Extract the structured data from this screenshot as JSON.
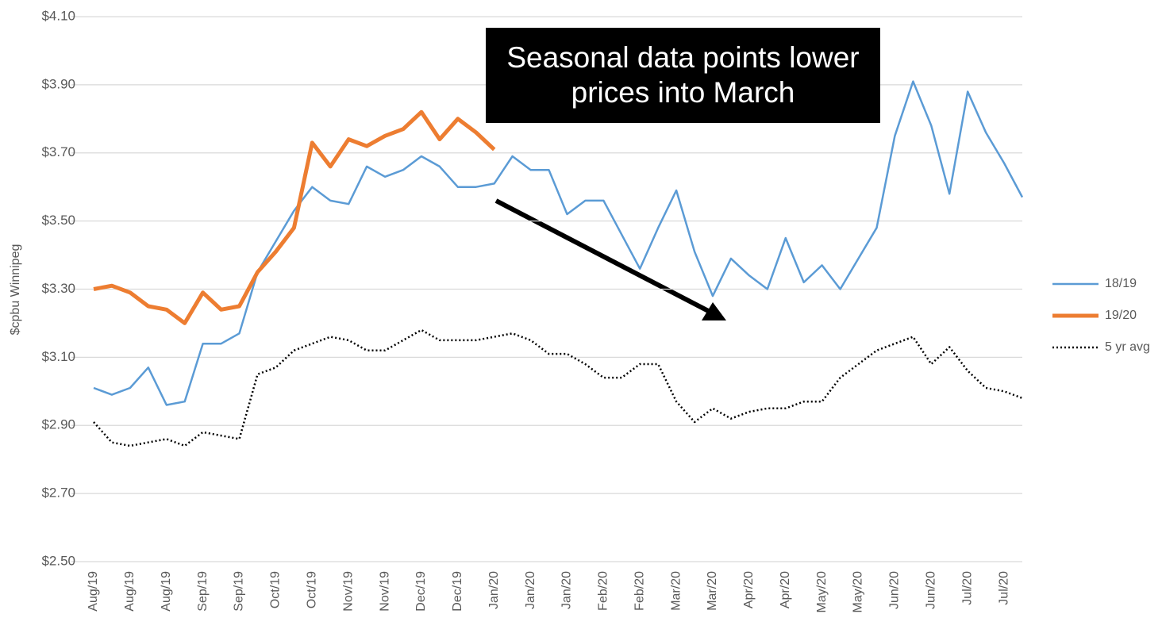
{
  "chart_data": {
    "type": "line",
    "y_label": "$cpbu Winnipeg",
    "annotation": "Seasonal data points lower prices into March",
    "categories": [
      "Aug/19",
      null,
      "Aug/19",
      null,
      "Aug/19",
      null,
      "Sep/19",
      null,
      "Sep/19",
      null,
      "Oct/19",
      null,
      "Oct/19",
      null,
      "Nov/19",
      null,
      "Nov/19",
      null,
      "Dec/19",
      null,
      "Dec/19",
      null,
      "Jan/20",
      null,
      "Jan/20",
      null,
      "Jan/20",
      null,
      "Feb/20",
      null,
      "Feb/20",
      null,
      "Mar/20",
      null,
      "Mar/20",
      null,
      "Apr/20",
      null,
      "Apr/20",
      null,
      "May/20",
      null,
      "May/20",
      null,
      "Jun/20",
      null,
      "Jun/20",
      null,
      "Jul/20",
      null,
      "Jul/20",
      null
    ],
    "series": [
      {
        "name": "18/19",
        "color": "#5b9bd5",
        "values": [
          3.01,
          2.99,
          3.01,
          3.07,
          2.96,
          2.97,
          3.14,
          3.14,
          3.17,
          3.35,
          3.44,
          3.53,
          3.6,
          3.56,
          3.55,
          3.66,
          3.63,
          3.65,
          3.69,
          3.66,
          3.6,
          3.6,
          3.61,
          3.69,
          3.65,
          3.65,
          3.52,
          3.56,
          3.56,
          3.46,
          3.36,
          3.48,
          3.59,
          3.41,
          3.28,
          3.39,
          3.34,
          3.3,
          3.45,
          3.32,
          3.37,
          3.3,
          3.39,
          3.48,
          3.75,
          3.91,
          3.78,
          3.58,
          3.88,
          3.76,
          3.67,
          3.57
        ]
      },
      {
        "name": "19/20",
        "color": "#ed7d31",
        "values": [
          3.3,
          3.31,
          3.29,
          3.25,
          3.24,
          3.2,
          3.29,
          3.24,
          3.25,
          3.35,
          3.41,
          3.48,
          3.73,
          3.66,
          3.74,
          3.72,
          3.75,
          3.77,
          3.82,
          3.74,
          3.8,
          3.76,
          3.71,
          null,
          null,
          null,
          null,
          null,
          null,
          null,
          null,
          null,
          null,
          null,
          null,
          null,
          null,
          null,
          null,
          null,
          null,
          null,
          null,
          null,
          null,
          null,
          null,
          null,
          null,
          null,
          null,
          null
        ]
      },
      {
        "name": "5 yr avg",
        "color": "#000000",
        "dotted": true,
        "values": [
          2.91,
          2.85,
          2.84,
          2.85,
          2.86,
          2.84,
          2.88,
          2.87,
          2.86,
          3.05,
          3.07,
          3.12,
          3.14,
          3.16,
          3.15,
          3.12,
          3.12,
          3.15,
          3.18,
          3.15,
          3.15,
          3.15,
          3.16,
          3.17,
          3.15,
          3.11,
          3.11,
          3.08,
          3.04,
          3.04,
          3.08,
          3.08,
          2.97,
          2.91,
          2.95,
          2.92,
          2.94,
          2.95,
          2.95,
          2.97,
          2.97,
          3.04,
          3.08,
          3.12,
          3.14,
          3.16,
          3.08,
          3.13,
          3.06,
          3.01,
          3.0,
          2.98
        ]
      }
    ],
    "ylim": [
      2.5,
      4.1
    ],
    "yticks": [
      {
        "value": 2.5,
        "label": "$2.50"
      },
      {
        "value": 2.7,
        "label": "$2.70"
      },
      {
        "value": 2.9,
        "label": "$2.90"
      },
      {
        "value": 3.1,
        "label": "$3.10"
      },
      {
        "value": 3.3,
        "label": "$3.30"
      },
      {
        "value": 3.5,
        "label": "$3.50"
      },
      {
        "value": 3.7,
        "label": "$3.70"
      },
      {
        "value": 3.9,
        "label": "$3.90"
      },
      {
        "value": 4.1,
        "label": "$4.10"
      }
    ],
    "grid": true,
    "legend": "right"
  }
}
